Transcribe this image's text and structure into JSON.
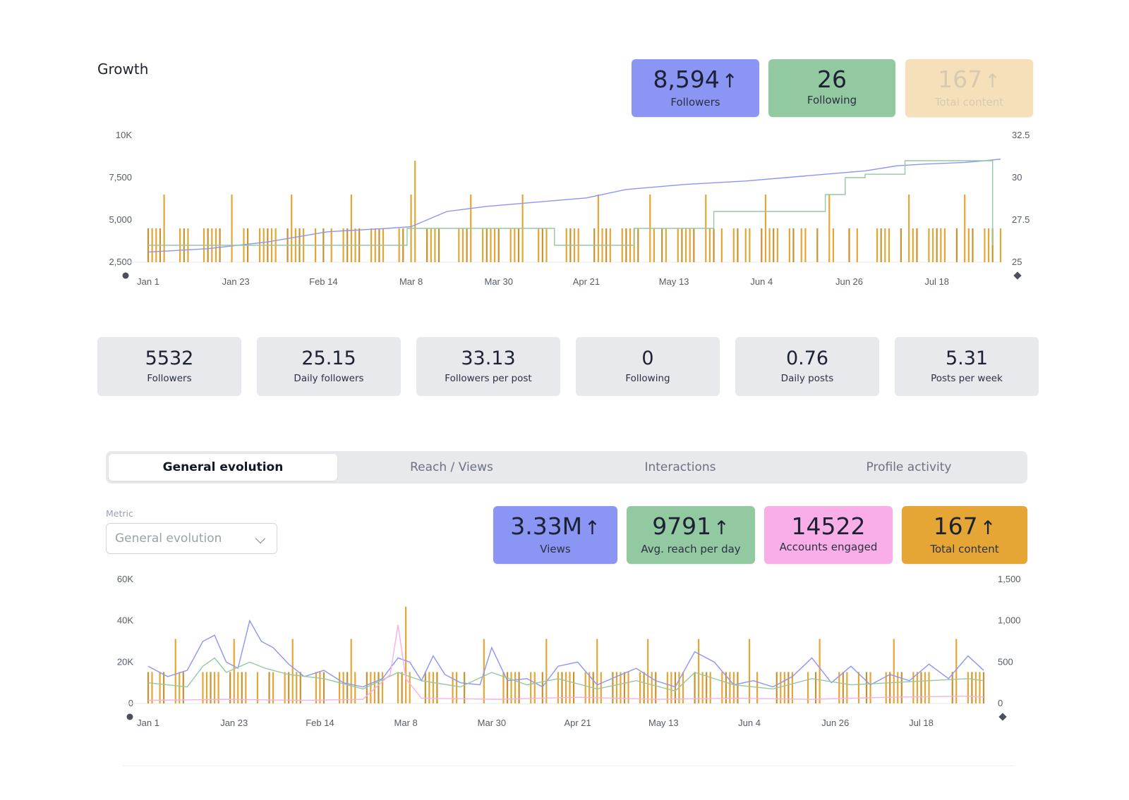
{
  "growth": {
    "title": "Growth",
    "kpis": [
      {
        "value": "8,594",
        "arrow": "↑",
        "label": "Followers",
        "color": "#8b95f3"
      },
      {
        "value": "26",
        "arrow": "",
        "label": "Following",
        "color": "#93c9a0"
      },
      {
        "value": "167",
        "arrow": "↑",
        "label": "Total content",
        "color": "#f6e0b9"
      }
    ]
  },
  "stats": [
    {
      "value": "5532",
      "label": "Followers"
    },
    {
      "value": "25.15",
      "label": "Daily followers"
    },
    {
      "value": "33.13",
      "label": "Followers per post"
    },
    {
      "value": "0",
      "label": "Following"
    },
    {
      "value": "0.76",
      "label": "Daily posts"
    },
    {
      "value": "5.31",
      "label": "Posts per week"
    }
  ],
  "tabs": [
    {
      "label": "General evolution",
      "active": true
    },
    {
      "label": "Reach / Views",
      "active": false
    },
    {
      "label": "Interactions",
      "active": false
    },
    {
      "label": "Profile activity",
      "active": false
    }
  ],
  "metric": {
    "label": "Metric",
    "selected": "General evolution"
  },
  "evolution": {
    "kpis": [
      {
        "value": "3.33M",
        "arrow": "↑",
        "label": "Views",
        "color": "#8b95f3"
      },
      {
        "value": "9791",
        "arrow": "↑",
        "label": "Avg. reach per day",
        "color": "#93c9a0"
      },
      {
        "value": "14522",
        "arrow": "",
        "label": "Accounts engaged",
        "color": "#f9aee7"
      },
      {
        "value": "167",
        "arrow": "↑",
        "label": "Total content",
        "color": "#e5a635"
      }
    ]
  },
  "chart_data": [
    {
      "type": "line",
      "x_ticks": [
        "Jan 1",
        "Jan 23",
        "Feb 14",
        "Mar 8",
        "Mar 30",
        "Apr 21",
        "May 13",
        "Jun 4",
        "Jun 26",
        "Jul 18"
      ],
      "y_left": {
        "ticks": [
          "2,500",
          "5,000",
          "7,500",
          "10K"
        ],
        "ylim": [
          2500,
          10000
        ]
      },
      "y_right": {
        "ticks": [
          "25",
          "27.5",
          "30",
          "32.5"
        ],
        "ylim": [
          25,
          32.5
        ]
      },
      "days": 215,
      "series": [
        {
          "kind": "line",
          "axis": "left",
          "color": "#8b95f3",
          "x": [
            0,
            15,
            30,
            45,
            60,
            66,
            75,
            85,
            100,
            110,
            120,
            135,
            150,
            160,
            170,
            180,
            188,
            195,
            205,
            210,
            214
          ],
          "y": [
            3100,
            3300,
            3700,
            4300,
            4500,
            4600,
            5500,
            5800,
            6100,
            6300,
            6800,
            7100,
            7300,
            7500,
            7700,
            7900,
            8200,
            8300,
            8400,
            8500,
            8594
          ]
        },
        {
          "kind": "step",
          "axis": "right",
          "color": "#93c9a0",
          "x": [
            0,
            65,
            102,
            122,
            142,
            170,
            175,
            180,
            190,
            198,
            209,
            212
          ],
          "y": [
            26,
            27,
            26,
            27,
            28,
            29,
            30,
            30.2,
            31,
            31,
            31,
            26
          ]
        },
        {
          "kind": "bar",
          "axis": "right",
          "color": "#e5a635",
          "base_value": 27,
          "tall_value": 29,
          "peak_value": 31
        }
      ]
    },
    {
      "type": "line",
      "x_ticks": [
        "Jan 1",
        "Jan 23",
        "Feb 14",
        "Mar 8",
        "Mar 30",
        "Apr 21",
        "May 13",
        "Jun 4",
        "Jun 26",
        "Jul 18"
      ],
      "y_left": {
        "ticks": [
          "0",
          "20K",
          "40K",
          "60K"
        ],
        "ylim": [
          0,
          60000
        ]
      },
      "y_right": {
        "ticks": [
          "0",
          "500",
          "1,000",
          "1,500"
        ],
        "ylim": [
          0,
          1500
        ]
      },
      "days": 215,
      "series": [
        {
          "kind": "line",
          "axis": "left",
          "color": "#8b95f3",
          "x": [
            0,
            5,
            10,
            14,
            17,
            20,
            23,
            26,
            29,
            32,
            36,
            40,
            45,
            50,
            55,
            60,
            64,
            67,
            70,
            73,
            76,
            80,
            85,
            88,
            92,
            97,
            101,
            105,
            110,
            115,
            120,
            125,
            130,
            135,
            140,
            145,
            150,
            155,
            160,
            165,
            170,
            175,
            180,
            185,
            190,
            195,
            200,
            205,
            210,
            214
          ],
          "y": [
            18000,
            13000,
            16000,
            30000,
            33000,
            20000,
            17000,
            40000,
            30000,
            27000,
            19000,
            13000,
            16000,
            10000,
            8000,
            12000,
            22000,
            20000,
            11000,
            23000,
            14000,
            10000,
            9000,
            27000,
            11000,
            12000,
            8000,
            18000,
            20000,
            9000,
            13000,
            17000,
            11000,
            8000,
            25000,
            20000,
            9000,
            11000,
            8000,
            13000,
            22000,
            10000,
            18000,
            9000,
            14000,
            11000,
            19000,
            12000,
            23000,
            16000
          ]
        },
        {
          "kind": "line",
          "axis": "left",
          "color": "#93c9a0",
          "x": [
            0,
            10,
            14,
            17,
            20,
            26,
            30,
            36,
            45,
            55,
            64,
            70,
            80,
            88,
            97,
            105,
            115,
            125,
            135,
            140,
            150,
            160,
            170,
            180,
            190,
            200,
            210,
            214
          ],
          "y": [
            10000,
            8000,
            18000,
            22000,
            15000,
            20000,
            17000,
            14000,
            12000,
            7000,
            15000,
            11000,
            8000,
            15000,
            9000,
            12000,
            7000,
            11000,
            6000,
            15000,
            9000,
            7000,
            12000,
            9000,
            10000,
            11000,
            12000,
            11000
          ]
        },
        {
          "kind": "line",
          "axis": "left",
          "color": "#f9aee7",
          "x": [
            0,
            20,
            40,
            55,
            62,
            64,
            66,
            70,
            90,
            110,
            130,
            150,
            170,
            190,
            210,
            214
          ],
          "y": [
            1500,
            2000,
            1500,
            2000,
            14000,
            38000,
            12000,
            2500,
            2000,
            3000,
            2000,
            2500,
            2000,
            3000,
            3500,
            3000
          ]
        },
        {
          "kind": "bar",
          "axis": "right",
          "color": "#e5a635",
          "base_value": 380,
          "tall_value": 780,
          "peak_value": 1170
        }
      ]
    }
  ]
}
